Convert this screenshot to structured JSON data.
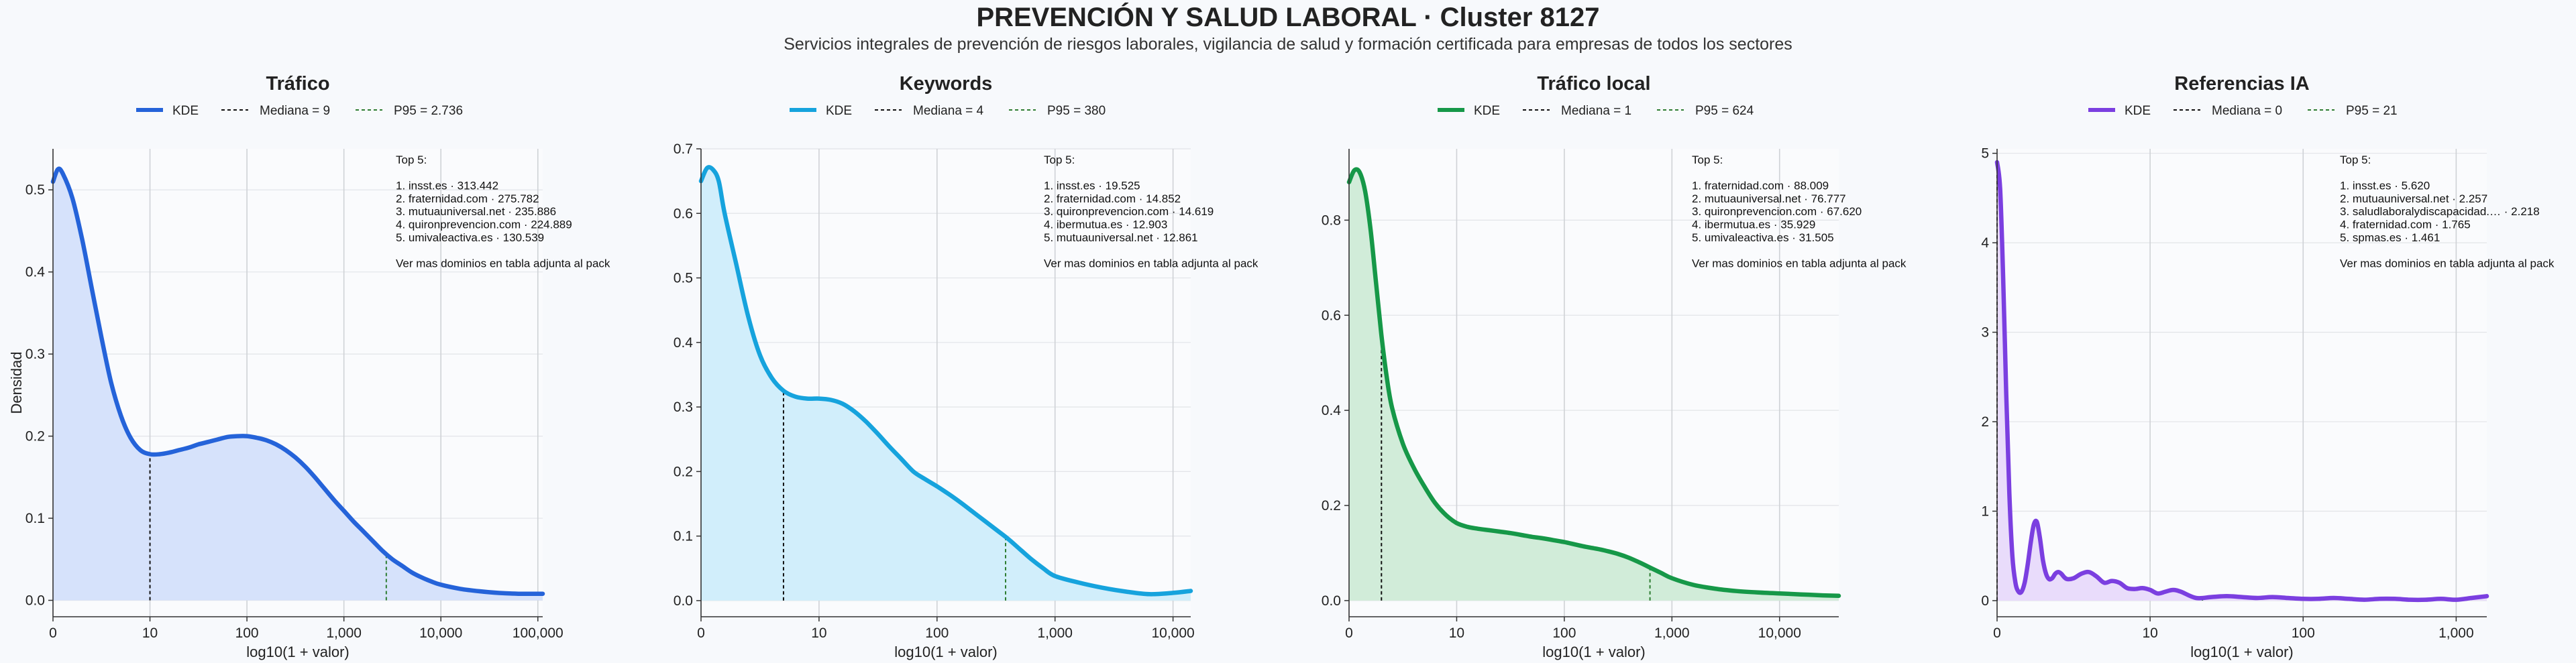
{
  "title": "PREVENCIÓN Y SALUD LABORAL · Cluster 8127",
  "subtitle": "Servicios integrales de prevención de riesgos laborales, vigilancia de salud y formación certificada para empresas de todos los sectores",
  "colors": {
    "median_line": "#111111",
    "p95_line": "#2e7d32",
    "grid": "#e2e4e8",
    "vgrid": "#cfd2d6"
  },
  "chart_data": [
    {
      "type": "area",
      "title": "Tráfico",
      "color": "#2563d9",
      "fill": "#d6e2fb",
      "xlabel": "log10(1 + valor)",
      "ylabel": "Densidad",
      "xlim": [
        0,
        5.05
      ],
      "ylim": [
        -0.02,
        0.55
      ],
      "yticks": [
        0.0,
        0.1,
        0.2,
        0.3,
        0.4,
        0.5
      ],
      "ytick_labels": [
        "0.0",
        "0.1",
        "0.2",
        "0.3",
        "0.4",
        "0.5"
      ],
      "xticks": [
        0,
        1,
        2,
        3,
        4,
        5
      ],
      "xtick_labels": [
        "0",
        "10",
        "100",
        "1,000",
        "10,000",
        "100,000"
      ],
      "legend": {
        "kde": "KDE",
        "median": "Mediana = 9",
        "p95": "P95 = 2.736"
      },
      "median_x": 1.0,
      "p95_x": 3.437,
      "x": [
        0,
        0.05,
        0.1,
        0.2,
        0.3,
        0.4,
        0.5,
        0.6,
        0.7,
        0.8,
        0.9,
        1.0,
        1.1,
        1.2,
        1.3,
        1.4,
        1.5,
        1.6,
        1.7,
        1.8,
        1.9,
        2.0,
        2.1,
        2.2,
        2.3,
        2.4,
        2.5,
        2.6,
        2.7,
        2.8,
        2.9,
        3.0,
        3.1,
        3.2,
        3.3,
        3.4,
        3.5,
        3.6,
        3.7,
        3.8,
        3.9,
        4.0,
        4.2,
        4.4,
        4.6,
        4.8,
        5.05
      ],
      "y": [
        0.51,
        0.525,
        0.52,
        0.49,
        0.44,
        0.38,
        0.32,
        0.265,
        0.225,
        0.198,
        0.183,
        0.178,
        0.178,
        0.18,
        0.183,
        0.186,
        0.19,
        0.193,
        0.196,
        0.199,
        0.2,
        0.2,
        0.198,
        0.195,
        0.19,
        0.183,
        0.174,
        0.163,
        0.15,
        0.136,
        0.122,
        0.109,
        0.096,
        0.084,
        0.072,
        0.06,
        0.05,
        0.042,
        0.034,
        0.028,
        0.023,
        0.019,
        0.014,
        0.011,
        0.009,
        0.008,
        0.008
      ],
      "annotation": [
        "Top 5:",
        "",
        "1. insst.es · 313.442",
        "2. fraternidad.com · 275.782",
        "3. mutuauniversal.net · 235.886",
        "4. quironprevencion.com · 224.889",
        "5. umivaleactiva.es · 130.539",
        "",
        "Ver mas dominios en tabla adjunta al pack"
      ]
    },
    {
      "type": "area",
      "title": "Keywords",
      "color": "#16a3dd",
      "fill": "#d1eefb",
      "xlabel": "log10(1 + valor)",
      "ylabel": "",
      "xlim": [
        0,
        4.15
      ],
      "ylim": [
        -0.025,
        0.7
      ],
      "yticks": [
        0.0,
        0.1,
        0.2,
        0.3,
        0.4,
        0.5,
        0.6,
        0.7
      ],
      "ytick_labels": [
        "0.0",
        "0.1",
        "0.2",
        "0.3",
        "0.4",
        "0.5",
        "0.6",
        "0.7"
      ],
      "xticks": [
        0,
        1,
        2,
        3,
        4
      ],
      "xtick_labels": [
        "0",
        "10",
        "100",
        "1,000",
        "10,000"
      ],
      "legend": {
        "kde": "KDE",
        "median": "Mediana = 4",
        "p95": "P95 = 380"
      },
      "median_x": 0.699,
      "p95_x": 2.581,
      "x": [
        0,
        0.05,
        0.1,
        0.15,
        0.2,
        0.3,
        0.4,
        0.5,
        0.6,
        0.7,
        0.8,
        0.9,
        1.0,
        1.1,
        1.2,
        1.3,
        1.4,
        1.5,
        1.6,
        1.7,
        1.8,
        1.9,
        2.0,
        2.1,
        2.2,
        2.3,
        2.4,
        2.5,
        2.6,
        2.7,
        2.8,
        2.9,
        3.0,
        3.2,
        3.4,
        3.6,
        3.8,
        4.0,
        4.15
      ],
      "y": [
        0.65,
        0.67,
        0.668,
        0.65,
        0.6,
        0.52,
        0.44,
        0.38,
        0.345,
        0.325,
        0.316,
        0.313,
        0.313,
        0.311,
        0.305,
        0.293,
        0.277,
        0.258,
        0.238,
        0.219,
        0.2,
        0.188,
        0.177,
        0.165,
        0.152,
        0.138,
        0.124,
        0.11,
        0.096,
        0.08,
        0.064,
        0.05,
        0.038,
        0.028,
        0.02,
        0.014,
        0.01,
        0.012,
        0.015
      ],
      "annotation": [
        "Top 5:",
        "",
        "1. insst.es · 19.525",
        "2. fraternidad.com · 14.852",
        "3. quironprevencion.com · 14.619",
        "4. ibermutua.es · 12.903",
        "5. mutuauniversal.net · 12.861",
        "",
        "Ver mas dominios en tabla adjunta al pack"
      ]
    },
    {
      "type": "area",
      "title": "Tráfico local",
      "color": "#169848",
      "fill": "#d1ecd9",
      "xlabel": "log10(1 + valor)",
      "ylabel": "",
      "xlim": [
        0,
        4.55
      ],
      "ylim": [
        -0.034,
        0.95
      ],
      "yticks": [
        0.0,
        0.2,
        0.4,
        0.6,
        0.8
      ],
      "ytick_labels": [
        "0.0",
        "0.2",
        "0.4",
        "0.6",
        "0.8"
      ],
      "xticks": [
        0,
        1,
        2,
        3,
        4
      ],
      "xtick_labels": [
        "0",
        "10",
        "100",
        "1,000",
        "10,000"
      ],
      "legend": {
        "kde": "KDE",
        "median": "Mediana = 1",
        "p95": "P95 = 624"
      },
      "median_x": 0.301,
      "p95_x": 2.796,
      "x": [
        0,
        0.05,
        0.1,
        0.15,
        0.2,
        0.25,
        0.3,
        0.35,
        0.4,
        0.5,
        0.6,
        0.7,
        0.8,
        0.9,
        1.0,
        1.1,
        1.2,
        1.3,
        1.4,
        1.5,
        1.6,
        1.7,
        1.8,
        1.9,
        2.0,
        2.1,
        2.2,
        2.3,
        2.4,
        2.5,
        2.6,
        2.7,
        2.8,
        2.9,
        3.0,
        3.2,
        3.4,
        3.6,
        3.8,
        4.0,
        4.2,
        4.4,
        4.55
      ],
      "y": [
        0.88,
        0.905,
        0.9,
        0.86,
        0.78,
        0.67,
        0.56,
        0.47,
        0.405,
        0.33,
        0.28,
        0.24,
        0.205,
        0.18,
        0.163,
        0.155,
        0.151,
        0.148,
        0.145,
        0.142,
        0.138,
        0.134,
        0.131,
        0.127,
        0.123,
        0.118,
        0.113,
        0.109,
        0.104,
        0.098,
        0.09,
        0.08,
        0.069,
        0.058,
        0.047,
        0.033,
        0.025,
        0.02,
        0.017,
        0.015,
        0.013,
        0.011,
        0.01
      ],
      "annotation": [
        "Top 5:",
        "",
        "1. fraternidad.com · 88.009",
        "2. mutuauniversal.net · 76.777",
        "3. quironprevencion.com · 67.620",
        "4. ibermutua.es · 35.929",
        "5. umivaleactiva.es · 31.505",
        "",
        "Ver mas dominios en tabla adjunta al pack"
      ]
    },
    {
      "type": "area",
      "title": "Referencias IA",
      "color": "#7b3fe0",
      "fill": "#e9dcfb",
      "xlabel": "log10(1 + valor)",
      "ylabel": "",
      "xlim": [
        0,
        3.2
      ],
      "ylim": [
        -0.18,
        5.05
      ],
      "yticks": [
        0,
        1,
        2,
        3,
        4,
        5
      ],
      "ytick_labels": [
        "0",
        "1",
        "2",
        "3",
        "4",
        "5"
      ],
      "xticks": [
        0,
        1,
        2,
        3
      ],
      "xtick_labels": [
        "0",
        "10",
        "100",
        "1,000"
      ],
      "legend": {
        "kde": "KDE",
        "median": "Mediana = 0",
        "p95": "P95 = 21"
      },
      "median_x": 0.0,
      "p95_x": 1.342,
      "x": [
        0,
        0.02,
        0.04,
        0.06,
        0.08,
        0.1,
        0.12,
        0.14,
        0.16,
        0.18,
        0.2,
        0.22,
        0.24,
        0.26,
        0.28,
        0.3,
        0.32,
        0.34,
        0.36,
        0.38,
        0.4,
        0.42,
        0.44,
        0.46,
        0.5,
        0.55,
        0.6,
        0.65,
        0.7,
        0.75,
        0.8,
        0.85,
        0.9,
        0.95,
        1.0,
        1.05,
        1.1,
        1.15,
        1.2,
        1.3,
        1.4,
        1.5,
        1.6,
        1.7,
        1.8,
        1.9,
        2.0,
        2.1,
        2.2,
        2.3,
        2.4,
        2.5,
        2.6,
        2.7,
        2.8,
        2.9,
        3.0,
        3.1,
        3.2
      ],
      "y": [
        4.9,
        4.6,
        3.6,
        2.3,
        1.2,
        0.5,
        0.2,
        0.1,
        0.1,
        0.2,
        0.4,
        0.65,
        0.85,
        0.88,
        0.7,
        0.45,
        0.3,
        0.24,
        0.25,
        0.3,
        0.32,
        0.3,
        0.26,
        0.24,
        0.25,
        0.3,
        0.32,
        0.27,
        0.2,
        0.22,
        0.2,
        0.14,
        0.13,
        0.14,
        0.12,
        0.08,
        0.1,
        0.12,
        0.1,
        0.03,
        0.04,
        0.05,
        0.04,
        0.03,
        0.04,
        0.03,
        0.02,
        0.02,
        0.03,
        0.02,
        0.01,
        0.02,
        0.02,
        0.01,
        0.01,
        0.02,
        0.01,
        0.03,
        0.05
      ],
      "annotation": [
        "Top 5:",
        "",
        "1. insst.es · 5.620",
        "2. mutuauniversal.net · 2.257",
        "3. saludlaboralydiscapacidad.… · 2.218",
        "4. fraternidad.com · 1.765",
        "5. spmas.es · 1.461",
        "",
        "Ver mas dominios en tabla adjunta al pack"
      ]
    }
  ]
}
